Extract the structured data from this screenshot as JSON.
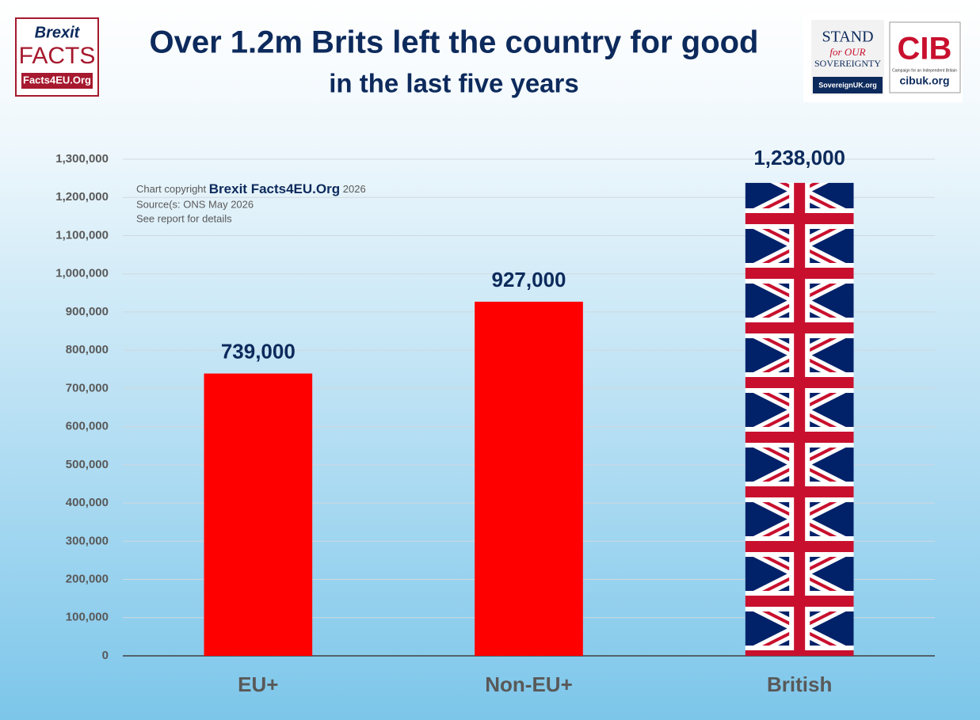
{
  "chart_data": {
    "type": "bar",
    "title": "Over 1.2m Brits left the country for good",
    "subtitle": "in the last five years",
    "categories": [
      "EU+",
      "Non-EU+",
      "British"
    ],
    "values": [
      739000,
      927000,
      1238000
    ],
    "value_labels": [
      "739,000",
      "927,000",
      "1,238,000"
    ],
    "colors": [
      "#ff0000",
      "#ff0000",
      "#012169"
    ],
    "ylim": [
      0,
      1300000
    ],
    "yticks": [
      0,
      {
        "value": 100000,
        "label": "100,000"
      },
      {
        "value": 200000,
        "label": "200,000"
      },
      {
        "value": 300000,
        "label": "300,000"
      },
      {
        "value": 400000,
        "label": "400,000"
      },
      {
        "value": 500000,
        "label": "500,000"
      },
      {
        "value": 600000,
        "label": "600,000"
      },
      {
        "value": 700000,
        "label": "700,000"
      },
      {
        "value": 800000,
        "label": "800,000"
      },
      {
        "value": 900000,
        "label": "900,000"
      },
      {
        "value": 1000000,
        "label": "1,000,000"
      },
      {
        "value": 1100000,
        "label": "1,100,000"
      },
      {
        "value": 1200000,
        "label": "1,200,000"
      },
      {
        "value": 1300000,
        "label": "1,300,000"
      }
    ],
    "grid": true,
    "annotations": {
      "copyright": "Chart copyright",
      "brand": "Brexit Facts4EU.Org",
      "year": "2026",
      "source": "Source(s: ONS May 2026",
      "details": "See report for details"
    }
  },
  "logos": {
    "brexit": "Brexit",
    "facts": "FACTS",
    "site": "Facts4EU.Org",
    "stand": "STAND",
    "for_our": "for OUR",
    "sovereignty": "SOVEREIGNTY",
    "sovereign_site": "SovereignUK.org",
    "cib": "CIB",
    "cib_tagline": "Campaign for an Independent Britain",
    "cib_site": "cibuk.org"
  }
}
